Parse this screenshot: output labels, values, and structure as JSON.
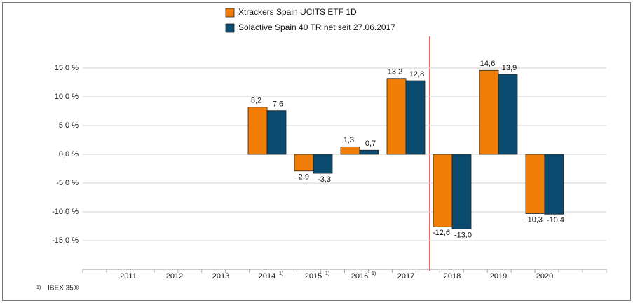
{
  "chart_data": {
    "type": "bar",
    "categories": [
      "2011",
      "2012",
      "2013",
      "2014",
      "2015",
      "2016",
      "2017",
      "2018",
      "2019",
      "2020"
    ],
    "category_notes": [
      null,
      null,
      null,
      "1)",
      "1)",
      "1)",
      null,
      null,
      null,
      null
    ],
    "series": [
      {
        "name": "Xtrackers Spain UCITS ETF  1D",
        "color": "#f07d05",
        "values": [
          null,
          null,
          null,
          8.2,
          -2.9,
          1.3,
          13.2,
          -12.6,
          14.6,
          -10.3
        ],
        "value_labels": [
          null,
          null,
          null,
          "8,2",
          "-2,9",
          "1,3",
          "13,2",
          "-12,6",
          "14,6",
          "-10,3"
        ]
      },
      {
        "name": "Solactive Spain 40 TR net seit 27.06.2017",
        "color": "#0b4a6f",
        "values": [
          null,
          null,
          null,
          7.6,
          -3.3,
          0.7,
          12.8,
          -13.0,
          13.9,
          -10.4
        ],
        "value_labels": [
          null,
          null,
          null,
          "7,6",
          "-3,3",
          "0,7",
          "12,8",
          "-13,0",
          "13,9",
          "-10,4"
        ]
      }
    ],
    "ylim": [
      -20,
      20
    ],
    "yticks": [
      {
        "value": -15,
        "label": "-15,0 %"
      },
      {
        "value": -10,
        "label": "-10,0 %"
      },
      {
        "value": -5,
        "label": "-5,0 %"
      },
      {
        "value": 0,
        "label": "0,0 %"
      },
      {
        "value": 5,
        "label": "5,0 %"
      },
      {
        "value": 10,
        "label": "10,0 %"
      },
      {
        "value": 15,
        "label": "15,0 %"
      }
    ],
    "grid": true,
    "footnote": {
      "marker": "1)",
      "text": "IBEX 35®"
    }
  }
}
